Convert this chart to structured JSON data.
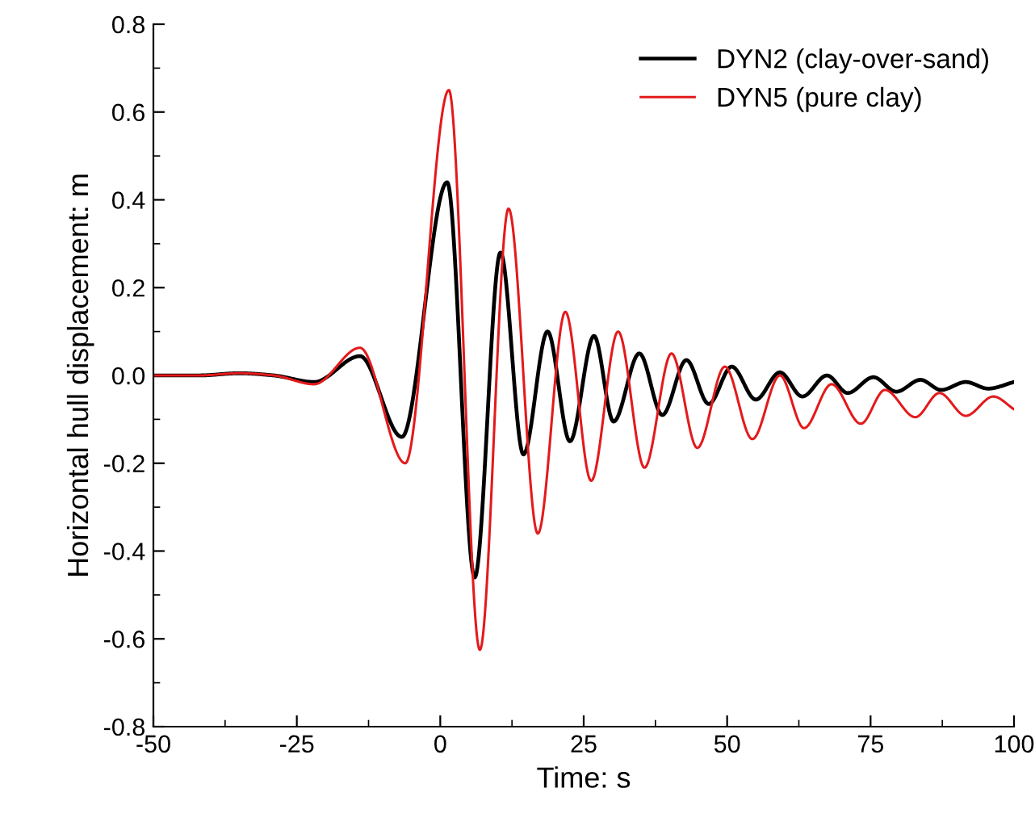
{
  "chart_data": {
    "type": "line",
    "xlabel": "Time: s",
    "ylabel": "Horizontal hull displacement: m",
    "xlim": [
      -50,
      100
    ],
    "ylim": [
      -0.8,
      0.8
    ],
    "xticks": [
      -50,
      -25,
      0,
      25,
      50,
      75,
      100
    ],
    "yticks": [
      {
        "value": -0.8,
        "label": "-0.8"
      },
      {
        "value": -0.6,
        "label": "-0.6"
      },
      {
        "value": -0.4,
        "label": "-0.4"
      },
      {
        "value": -0.2,
        "label": "-0.2"
      },
      {
        "value": 0.0,
        "label": "0.0"
      },
      {
        "value": 0.2,
        "label": "0.2"
      },
      {
        "value": 0.4,
        "label": "0.4"
      },
      {
        "value": 0.6,
        "label": "0.6"
      },
      {
        "value": 0.8,
        "label": "0.8"
      }
    ],
    "grid": false,
    "legend": "top right",
    "marker": "none",
    "line_style": "solid",
    "series": [
      {
        "name": "DYN2 (clay-over-sand)",
        "color": "#000000",
        "x": [
          -50,
          -42,
          -35,
          -29,
          -22,
          -14,
          -6.7,
          1.2,
          6.0,
          10.5,
          14.5,
          18.7,
          22.6,
          26.8,
          30.2,
          34.7,
          38.7,
          42.9,
          46.8,
          50.8,
          55,
          59.2,
          63.1,
          67.4,
          71,
          75.5,
          79.5,
          83.7,
          87.3,
          91.6,
          95.5,
          100
        ],
        "values": [
          0,
          0,
          0.005,
          0,
          -0.015,
          0.044,
          -0.14,
          0.44,
          -0.46,
          0.28,
          -0.18,
          0.1,
          -0.15,
          0.09,
          -0.105,
          0.05,
          -0.09,
          0.035,
          -0.065,
          0.02,
          -0.055,
          0.007,
          -0.048,
          0,
          -0.04,
          -0.004,
          -0.037,
          -0.01,
          -0.033,
          -0.015,
          -0.03,
          -0.015
        ]
      },
      {
        "name": "DYN5 (pure clay)",
        "color": "#e31a1c",
        "x": [
          -50,
          -42,
          -35,
          -29,
          -22,
          -14,
          -6.1,
          1.5,
          6.9,
          11.9,
          17,
          21.8,
          26.3,
          31,
          35.6,
          40.3,
          44.8,
          49.6,
          54.4,
          59.2,
          63.4,
          68.2,
          73.3,
          77.5,
          82.8,
          87,
          91.6,
          96.4,
          100
        ],
        "values": [
          0,
          0,
          0.005,
          0,
          -0.02,
          0.063,
          -0.2,
          0.65,
          -0.625,
          0.38,
          -0.36,
          0.145,
          -0.24,
          0.1,
          -0.21,
          0.05,
          -0.165,
          0.02,
          -0.145,
          0,
          -0.12,
          -0.02,
          -0.11,
          -0.033,
          -0.095,
          -0.04,
          -0.092,
          -0.048,
          -0.077
        ]
      }
    ]
  }
}
